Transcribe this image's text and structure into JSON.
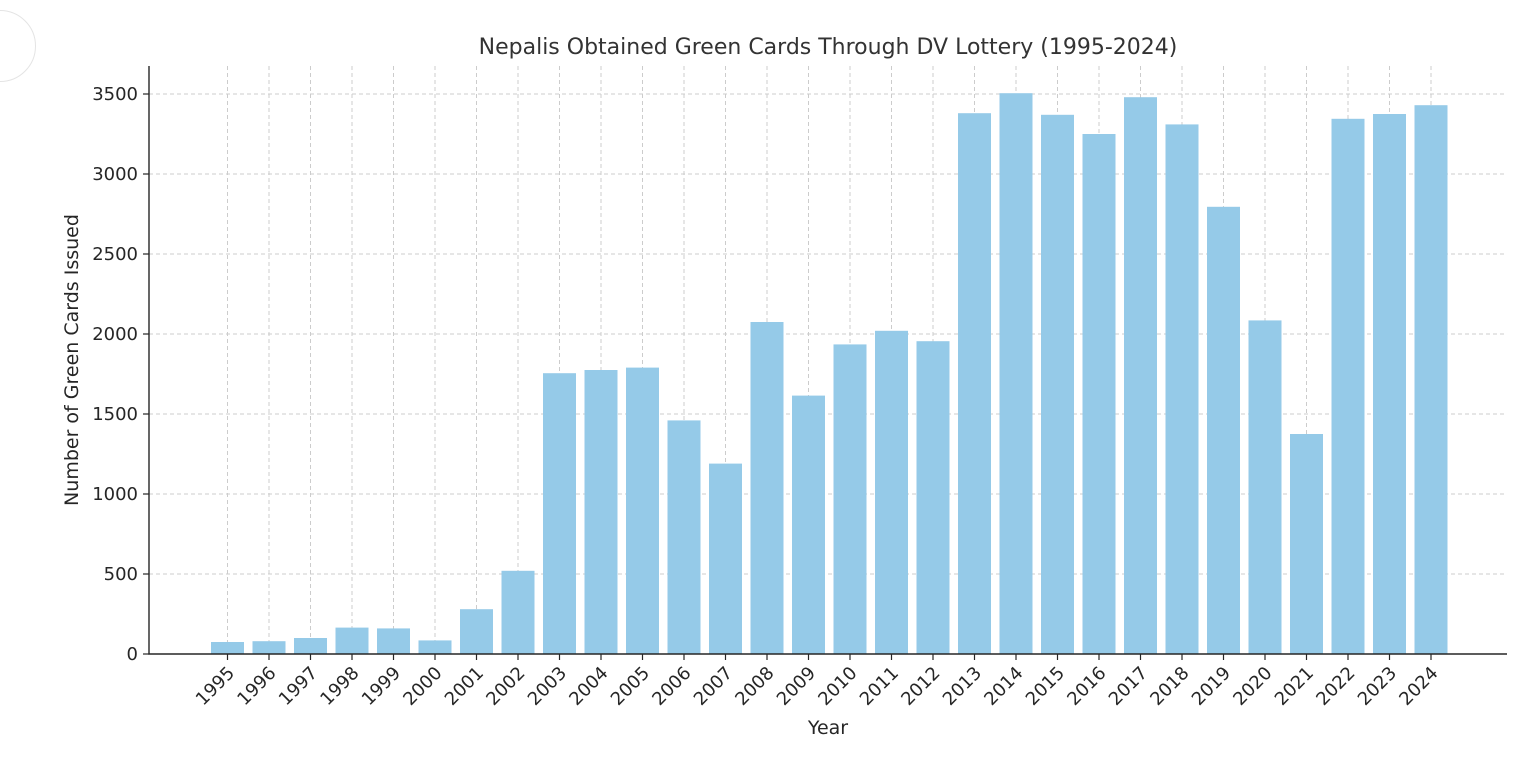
{
  "chart_data": {
    "type": "bar",
    "title": "Nepalis Obtained Green Cards Through DV Lottery (1995-2024)",
    "xlabel": "Year",
    "ylabel": "Number of Green Cards Issued",
    "categories": [
      "1995",
      "1996",
      "1997",
      "1998",
      "1999",
      "2000",
      "2001",
      "2002",
      "2003",
      "2004",
      "2005",
      "2006",
      "2007",
      "2008",
      "2009",
      "2010",
      "2011",
      "2012",
      "2013",
      "2014",
      "2015",
      "2016",
      "2017",
      "2018",
      "2019",
      "2020",
      "2021",
      "2022",
      "2023",
      "2024"
    ],
    "values": [
      75,
      80,
      100,
      165,
      160,
      85,
      280,
      520,
      1755,
      1775,
      1790,
      1460,
      1190,
      2075,
      1615,
      1935,
      2020,
      1955,
      3380,
      3505,
      3370,
      3250,
      3480,
      3310,
      2795,
      2085,
      1375,
      3345,
      3375,
      3430
    ],
    "yticks": [
      0,
      500,
      1000,
      1500,
      2000,
      2500,
      3000,
      3500
    ],
    "ylim": [
      0,
      3675
    ],
    "grid": true,
    "bar_color": "#95cae8"
  }
}
